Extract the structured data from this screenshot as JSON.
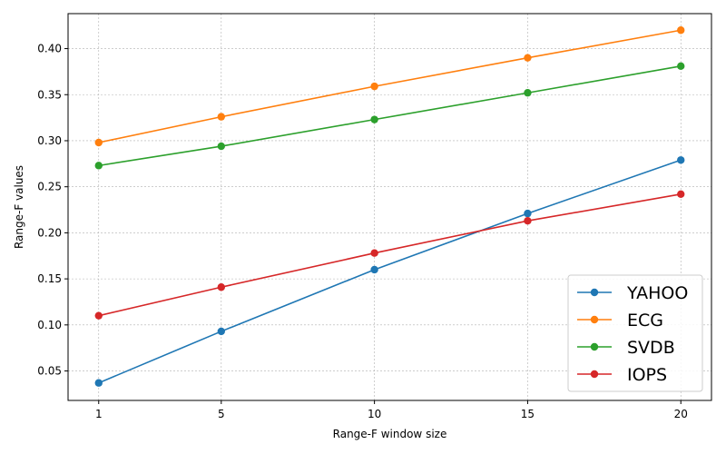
{
  "chart_data": {
    "type": "line",
    "title": "",
    "xlabel": "Range-F window size",
    "ylabel": "Range-F values",
    "x": [
      1,
      5,
      10,
      15,
      20
    ],
    "x_tick_labels": [
      "1",
      "5",
      "10",
      "15",
      "20"
    ],
    "y_ticks": [
      0.05,
      0.1,
      0.15,
      0.2,
      0.25,
      0.3,
      0.35,
      0.4
    ],
    "y_tick_labels": [
      "0.05",
      "0.10",
      "0.15",
      "0.20",
      "0.25",
      "0.30",
      "0.35",
      "0.40"
    ],
    "xlim": [
      0.0,
      21.0
    ],
    "ylim": [
      0.018,
      0.438
    ],
    "grid": true,
    "legend_position": "lower right",
    "series": [
      {
        "name": "YAHOO",
        "color": "#1f77b4",
        "values": [
          0.037,
          0.093,
          0.16,
          0.221,
          0.279
        ]
      },
      {
        "name": "ECG",
        "color": "#ff7f0e",
        "values": [
          0.298,
          0.326,
          0.359,
          0.39,
          0.42
        ]
      },
      {
        "name": "SVDB",
        "color": "#2ca02c",
        "values": [
          0.273,
          0.294,
          0.323,
          0.352,
          0.381
        ]
      },
      {
        "name": "IOPS",
        "color": "#d62728",
        "values": [
          0.11,
          0.141,
          0.178,
          0.213,
          0.242
        ]
      }
    ]
  }
}
